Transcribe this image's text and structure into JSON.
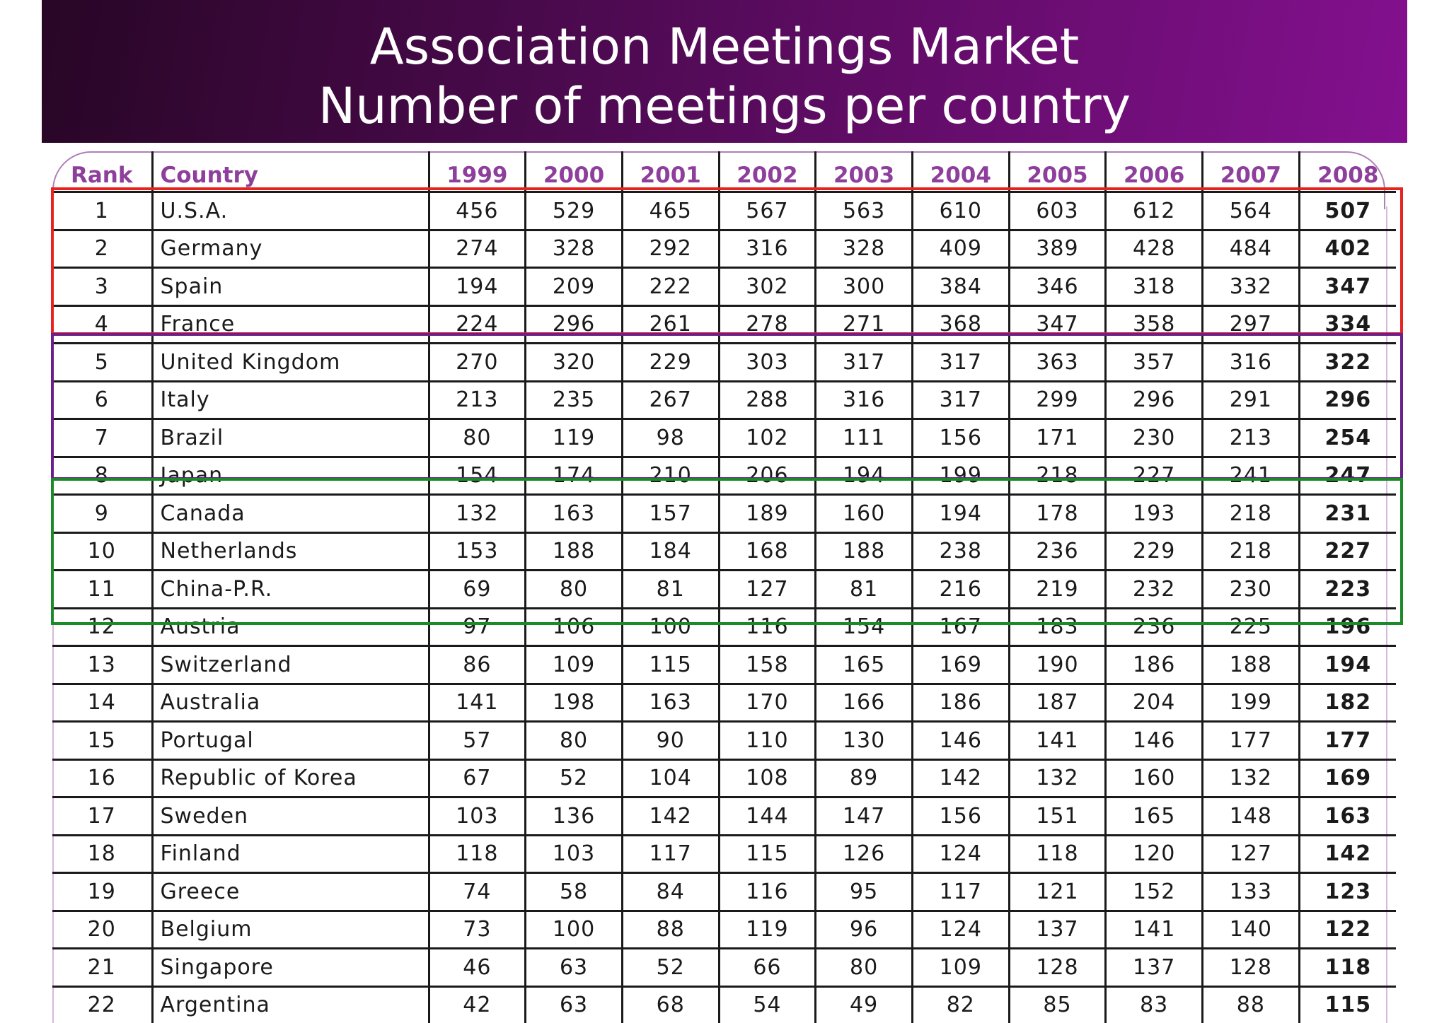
{
  "title": {
    "line1": "Association Meetings Market",
    "line2": "Number of meetings per country"
  },
  "colors": {
    "banner_start": "#280626",
    "banner_end": "#84108f",
    "header_text": "#8d3f9b",
    "highlight_top5": "#e8221f",
    "highlight_6_10": "#6a1f8a",
    "highlight_11_15": "#1d8a2a"
  },
  "table": {
    "headers": [
      "Rank",
      "Country",
      "1999",
      "2000",
      "2001",
      "2002",
      "2003",
      "2004",
      "2005",
      "2006",
      "2007",
      "2008"
    ],
    "rows": [
      [
        "1",
        "U.S.A.",
        "456",
        "529",
        "465",
        "567",
        "563",
        "610",
        "603",
        "612",
        "564",
        "507"
      ],
      [
        "2",
        "Germany",
        "274",
        "328",
        "292",
        "316",
        "328",
        "409",
        "389",
        "428",
        "484",
        "402"
      ],
      [
        "3",
        "Spain",
        "194",
        "209",
        "222",
        "302",
        "300",
        "384",
        "346",
        "318",
        "332",
        "347"
      ],
      [
        "4",
        "France",
        "224",
        "296",
        "261",
        "278",
        "271",
        "368",
        "347",
        "358",
        "297",
        "334"
      ],
      [
        "5",
        "United Kingdom",
        "270",
        "320",
        "229",
        "303",
        "317",
        "317",
        "363",
        "357",
        "316",
        "322"
      ],
      [
        "6",
        "Italy",
        "213",
        "235",
        "267",
        "288",
        "316",
        "317",
        "299",
        "296",
        "291",
        "296"
      ],
      [
        "7",
        "Brazil",
        "80",
        "119",
        "98",
        "102",
        "111",
        "156",
        "171",
        "230",
        "213",
        "254"
      ],
      [
        "8",
        "Japan",
        "154",
        "174",
        "210",
        "206",
        "194",
        "199",
        "218",
        "227",
        "241",
        "247"
      ],
      [
        "9",
        "Canada",
        "132",
        "163",
        "157",
        "189",
        "160",
        "194",
        "178",
        "193",
        "218",
        "231"
      ],
      [
        "10",
        "Netherlands",
        "153",
        "188",
        "184",
        "168",
        "188",
        "238",
        "236",
        "229",
        "218",
        "227"
      ],
      [
        "11",
        "China-P.R.",
        "69",
        "80",
        "81",
        "127",
        "81",
        "216",
        "219",
        "232",
        "230",
        "223"
      ],
      [
        "12",
        "Austria",
        "97",
        "106",
        "100",
        "116",
        "154",
        "167",
        "183",
        "236",
        "225",
        "196"
      ],
      [
        "13",
        "Switzerland",
        "86",
        "109",
        "115",
        "158",
        "165",
        "169",
        "190",
        "186",
        "188",
        "194"
      ],
      [
        "14",
        "Australia",
        "141",
        "198",
        "163",
        "170",
        "166",
        "186",
        "187",
        "204",
        "199",
        "182"
      ],
      [
        "15",
        "Portugal",
        "57",
        "80",
        "90",
        "110",
        "130",
        "146",
        "141",
        "146",
        "177",
        "177"
      ],
      [
        "16",
        "Republic of Korea",
        "67",
        "52",
        "104",
        "108",
        "89",
        "142",
        "132",
        "160",
        "132",
        "169"
      ],
      [
        "17",
        "Sweden",
        "103",
        "136",
        "142",
        "144",
        "147",
        "156",
        "151",
        "165",
        "148",
        "163"
      ],
      [
        "18",
        "Finland",
        "118",
        "103",
        "117",
        "115",
        "126",
        "124",
        "118",
        "120",
        "127",
        "142"
      ],
      [
        "19",
        "Greece",
        "74",
        "58",
        "84",
        "116",
        "95",
        "117",
        "121",
        "152",
        "133",
        "123"
      ],
      [
        "20",
        "Belgium",
        "73",
        "100",
        "88",
        "119",
        "96",
        "124",
        "137",
        "141",
        "140",
        "122"
      ],
      [
        "21",
        "Singapore",
        "46",
        "63",
        "52",
        "66",
        "80",
        "109",
        "128",
        "137",
        "128",
        "118"
      ],
      [
        "22",
        "Argentina",
        "42",
        "63",
        "68",
        "54",
        "49",
        "82",
        "85",
        "83",
        "88",
        "115"
      ]
    ]
  }
}
